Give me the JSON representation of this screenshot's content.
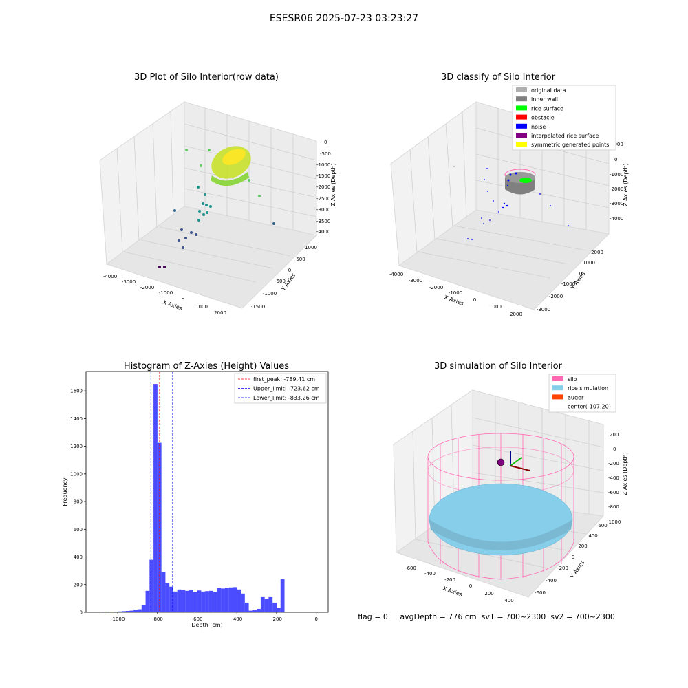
{
  "figure": {
    "title": "ESESR06 2025-07-23 03:23:27",
    "footer": "flag = 0     avgDepth = 776 cm  sv1 = 700~2300  sv2 = 700~2300"
  },
  "chart_data": [
    {
      "type": "scatter",
      "title": "3D Plot of Silo Interior(row data)",
      "xlabel": "X Axies",
      "ylabel": "Y Axies",
      "zlabel": "Z Axies (Depth)",
      "x_ticks": [
        "-4000",
        "-3000",
        "-2000",
        "-1000",
        "0",
        "1000",
        "2000"
      ],
      "y_ticks": [
        "-1500",
        "-1000",
        "-500",
        "0",
        "500",
        "1000"
      ],
      "z_ticks": [
        "0",
        "-500",
        "-1000",
        "-1500",
        "-2000",
        "-2500",
        "-3000",
        "-3500",
        "-4000"
      ],
      "colormap": "viridis",
      "grid": true
    },
    {
      "type": "scatter",
      "title": "3D classify of Silo Interior",
      "xlabel": "X Axies",
      "ylabel": "Y Axies",
      "zlabel": "Z Axies (Depth)",
      "x_ticks": [
        "-4000",
        "-3000",
        "-2000",
        "-1000",
        "0",
        "1000",
        "2000"
      ],
      "y_ticks": [
        "-3000",
        "-2000",
        "-1000",
        "0",
        "1000",
        "2000"
      ],
      "z_ticks": [
        "1000",
        "0",
        "-1000",
        "-2000",
        "-3000",
        "-4000"
      ],
      "legend_position": "top-right",
      "legend": [
        {
          "label": "original data",
          "color": "#b0b0b0"
        },
        {
          "label": "inner wall",
          "color": "#808080"
        },
        {
          "label": "rice surface",
          "color": "#00ff00"
        },
        {
          "label": "obstacle",
          "color": "#ff0000"
        },
        {
          "label": "noise",
          "color": "#0000ff"
        },
        {
          "label": "interpolated rice surface",
          "color": "#800080"
        },
        {
          "label": "symmetric generated points",
          "color": "#ffff00"
        }
      ],
      "grid": true
    },
    {
      "type": "bar",
      "title": "Histogram of Z-Axies (Height) Values",
      "xlabel": "Depth (cm)",
      "ylabel": "Frequency",
      "xlim": [
        -1160,
        60
      ],
      "ylim": [
        0,
        1740
      ],
      "x_ticks": [
        -1000,
        -800,
        -600,
        -400,
        -200,
        0
      ],
      "y_ticks": [
        0,
        200,
        400,
        600,
        800,
        1000,
        1200,
        1400,
        1600
      ],
      "bin_width": 20,
      "bar_color": "#0000ff",
      "bins": [
        [
          -1080,
          3
        ],
        [
          -1060,
          5
        ],
        [
          -1040,
          2
        ],
        [
          -1020,
          4
        ],
        [
          -1000,
          6
        ],
        [
          -980,
          8
        ],
        [
          -960,
          10
        ],
        [
          -940,
          12
        ],
        [
          -920,
          20
        ],
        [
          -900,
          22
        ],
        [
          -880,
          50
        ],
        [
          -860,
          155
        ],
        [
          -840,
          380
        ],
        [
          -820,
          1650
        ],
        [
          -800,
          1225
        ],
        [
          -780,
          290
        ],
        [
          -760,
          210
        ],
        [
          -740,
          185
        ],
        [
          -720,
          150
        ],
        [
          -700,
          165
        ],
        [
          -680,
          160
        ],
        [
          -660,
          155
        ],
        [
          -640,
          162
        ],
        [
          -620,
          145
        ],
        [
          -600,
          158
        ],
        [
          -580,
          150
        ],
        [
          -560,
          153
        ],
        [
          -540,
          155
        ],
        [
          -520,
          148
        ],
        [
          -500,
          175
        ],
        [
          -480,
          172
        ],
        [
          -460,
          176
        ],
        [
          -440,
          180
        ],
        [
          -420,
          182
        ],
        [
          -400,
          165
        ],
        [
          -380,
          135
        ],
        [
          -360,
          70
        ],
        [
          -340,
          12
        ],
        [
          -320,
          15
        ],
        [
          -300,
          25
        ],
        [
          -280,
          110
        ],
        [
          -260,
          95
        ],
        [
          -240,
          110
        ],
        [
          -220,
          70
        ],
        [
          -200,
          30
        ],
        [
          -180,
          240
        ],
        [
          -160,
          0
        ]
      ],
      "lines": [
        {
          "label": "first_peak: -789.41 cm",
          "value": -789.41,
          "color": "#ff0000"
        },
        {
          "label": "Upper_limit: -723.62 cm",
          "value": -723.62,
          "color": "#0000ff"
        },
        {
          "label": "Lower_limit: -833.26 cm",
          "value": -833.26,
          "color": "#0000ff"
        }
      ],
      "legend_position": "top-right"
    },
    {
      "type": "scatter",
      "title": "3D simulation of Silo Interior",
      "xlabel": "X Axies",
      "ylabel": "Y Axies",
      "zlabel": "Z Axies (Depth)",
      "x_ticks": [
        "-600",
        "-400",
        "-200",
        "0",
        "200",
        "400"
      ],
      "y_ticks": [
        "-600",
        "-400",
        "-200",
        "0",
        "200",
        "400",
        "600"
      ],
      "z_ticks": [
        "200",
        "0",
        "-200",
        "-400",
        "-600",
        "-800",
        "-1000"
      ],
      "legend_position": "top-right",
      "legend": [
        {
          "label": "silo",
          "color": "#ff69b4"
        },
        {
          "label": "rice simulation",
          "color": "#87ceeb"
        },
        {
          "label": "auger",
          "color": "#ff4500"
        },
        {
          "label": "center(-107,20)",
          "color": ""
        }
      ],
      "grid": true
    }
  ]
}
